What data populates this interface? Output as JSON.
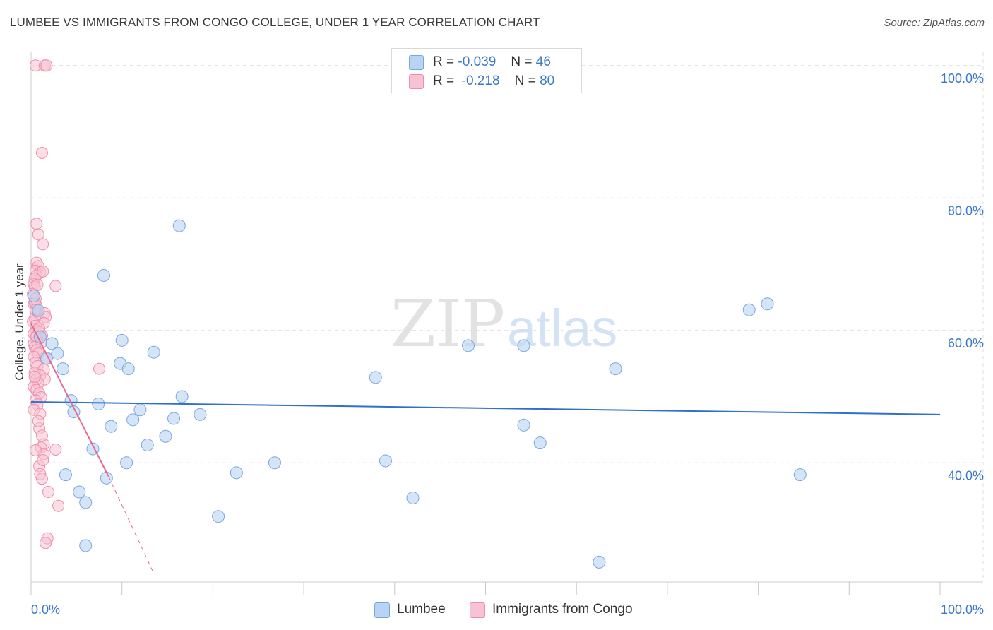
{
  "header": {
    "title": "LUMBEE VS IMMIGRANTS FROM CONGO COLLEGE, UNDER 1 YEAR CORRELATION CHART",
    "source": "Source: ZipAtlas.com"
  },
  "watermark": {
    "zip": "ZIP",
    "atlas": "atlas"
  },
  "legend_top": {
    "rows": [
      {
        "r_label": "R =",
        "r_value": "-0.039",
        "n_label": "N =",
        "n_value": "46"
      },
      {
        "r_label": "R =",
        "r_value": "-0.218",
        "n_label": "N =",
        "n_value": "80"
      }
    ]
  },
  "legend_bottom": {
    "items": [
      "Lumbee",
      "Immigrants from Congo"
    ]
  },
  "colors": {
    "lumbee_fill": "#b9d3f3",
    "lumbee_stroke": "#7aa6e0",
    "lumbee_line": "#2f6fce",
    "congo_fill": "#f7c2d2",
    "congo_stroke": "#ee8eab",
    "congo_line": "#e46a94",
    "tick_label": "#3b78c9",
    "grid": "#dddddd"
  },
  "chart_data": {
    "type": "scatter",
    "title": "LUMBEE VS IMMIGRANTS FROM CONGO COLLEGE, UNDER 1 YEAR CORRELATION CHART",
    "xlabel": "",
    "ylabel": "College, Under 1 year",
    "xlim": [
      0,
      100
    ],
    "ylim": [
      22,
      102
    ],
    "x_tick_labels": [
      "0.0%",
      "100.0%"
    ],
    "y_ticks": [
      40,
      60,
      80,
      100
    ],
    "y_tick_labels": [
      "40.0%",
      "60.0%",
      "80.0%",
      "100.0%"
    ],
    "grid": true,
    "legend": "bottom-center",
    "series": [
      {
        "name": "Lumbee",
        "r": -0.039,
        "n": 46,
        "trend": {
          "x0": 0,
          "y0": 49.2,
          "x1": 100,
          "y1": 47.3
        },
        "points": [
          [
            0.3,
            65.2
          ],
          [
            0.8,
            63.0
          ],
          [
            1.0,
            59.0
          ],
          [
            1.7,
            55.8
          ],
          [
            2.3,
            58.0
          ],
          [
            2.9,
            56.5
          ],
          [
            3.5,
            54.2
          ],
          [
            3.8,
            38.2
          ],
          [
            4.4,
            49.4
          ],
          [
            4.7,
            47.7
          ],
          [
            5.3,
            35.6
          ],
          [
            6.0,
            34.0
          ],
          [
            6.0,
            27.5
          ],
          [
            6.8,
            42.1
          ],
          [
            7.4,
            48.9
          ],
          [
            8.0,
            68.3
          ],
          [
            8.3,
            37.7
          ],
          [
            8.8,
            45.5
          ],
          [
            9.8,
            55.0
          ],
          [
            10.0,
            58.5
          ],
          [
            10.5,
            40.0
          ],
          [
            10.7,
            54.2
          ],
          [
            11.2,
            46.5
          ],
          [
            12.0,
            48.0
          ],
          [
            12.8,
            42.7
          ],
          [
            13.5,
            56.7
          ],
          [
            14.8,
            44.0
          ],
          [
            15.7,
            46.7
          ],
          [
            16.3,
            75.8
          ],
          [
            16.6,
            50.0
          ],
          [
            18.6,
            47.3
          ],
          [
            20.6,
            31.9
          ],
          [
            22.6,
            38.5
          ],
          [
            26.8,
            40.0
          ],
          [
            37.9,
            52.9
          ],
          [
            39.0,
            40.3
          ],
          [
            42.0,
            34.7
          ],
          [
            48.1,
            57.7
          ],
          [
            54.2,
            57.7
          ],
          [
            54.2,
            45.7
          ],
          [
            56.0,
            43.0
          ],
          [
            62.5,
            25.0
          ],
          [
            64.3,
            54.2
          ],
          [
            79.0,
            63.1
          ],
          [
            81.0,
            64.0
          ],
          [
            84.6,
            38.2
          ]
        ]
      },
      {
        "name": "Immigrants from Congo",
        "r": -0.218,
        "n": 80,
        "trend": {
          "x0": 0,
          "y0": 61.0,
          "x1": 8.5,
          "y1": 38.0,
          "dash_to_x": 13.5,
          "dash_to_y": 23.3
        },
        "points": [
          [
            0.5,
            100.0
          ],
          [
            1.5,
            100.0
          ],
          [
            1.7,
            100.0
          ],
          [
            1.2,
            86.8
          ],
          [
            0.6,
            76.1
          ],
          [
            0.8,
            74.5
          ],
          [
            1.3,
            73.0
          ],
          [
            0.6,
            70.2
          ],
          [
            0.8,
            69.7
          ],
          [
            0.5,
            69.0
          ],
          [
            1.0,
            68.8
          ],
          [
            0.6,
            68.3
          ],
          [
            0.4,
            67.8
          ],
          [
            1.3,
            68.9
          ],
          [
            0.3,
            67.0
          ],
          [
            0.4,
            66.6
          ],
          [
            2.7,
            66.7
          ],
          [
            0.2,
            65.5
          ],
          [
            0.5,
            64.8
          ],
          [
            0.3,
            64.0
          ],
          [
            0.6,
            63.7
          ],
          [
            0.8,
            62.5
          ],
          [
            1.5,
            62.6
          ],
          [
            1.6,
            62.0
          ],
          [
            0.4,
            61.8
          ],
          [
            0.2,
            61.3
          ],
          [
            1.4,
            61.1
          ],
          [
            0.5,
            60.7
          ],
          [
            0.6,
            60.0
          ],
          [
            0.3,
            59.5
          ],
          [
            0.9,
            59.7
          ],
          [
            1.2,
            59.2
          ],
          [
            0.5,
            58.9
          ],
          [
            0.7,
            58.4
          ],
          [
            0.3,
            58.0
          ],
          [
            1.1,
            58.1
          ],
          [
            0.4,
            57.5
          ],
          [
            0.6,
            57.0
          ],
          [
            0.8,
            56.5
          ],
          [
            0.3,
            56.0
          ],
          [
            1.7,
            55.7
          ],
          [
            0.5,
            55.1
          ],
          [
            0.7,
            54.6
          ],
          [
            1.4,
            54.1
          ],
          [
            0.4,
            53.6
          ],
          [
            1.0,
            53.2
          ],
          [
            0.6,
            52.6
          ],
          [
            1.5,
            52.6
          ],
          [
            0.8,
            52.0
          ],
          [
            0.3,
            51.5
          ],
          [
            0.6,
            51.0
          ],
          [
            0.9,
            50.5
          ],
          [
            1.1,
            49.9
          ],
          [
            0.5,
            49.4
          ],
          [
            0.7,
            48.8
          ],
          [
            0.3,
            48.0
          ],
          [
            1.0,
            47.4
          ],
          [
            0.9,
            45.2
          ],
          [
            1.4,
            42.8
          ],
          [
            1.1,
            42.3
          ],
          [
            2.7,
            42.0
          ],
          [
            1.4,
            41.3
          ],
          [
            0.9,
            39.5
          ],
          [
            1.0,
            38.3
          ],
          [
            1.2,
            37.6
          ],
          [
            1.9,
            35.6
          ],
          [
            3.0,
            33.5
          ],
          [
            1.8,
            28.6
          ],
          [
            1.6,
            27.9
          ],
          [
            7.5,
            54.2
          ],
          [
            0.4,
            64.2
          ],
          [
            0.7,
            66.9
          ],
          [
            0.5,
            63.1
          ],
          [
            0.9,
            60.3
          ],
          [
            0.6,
            59.1
          ],
          [
            0.4,
            53.0
          ],
          [
            0.8,
            46.3
          ],
          [
            1.2,
            44.1
          ],
          [
            0.5,
            41.9
          ],
          [
            1.3,
            40.4
          ]
        ]
      }
    ]
  }
}
